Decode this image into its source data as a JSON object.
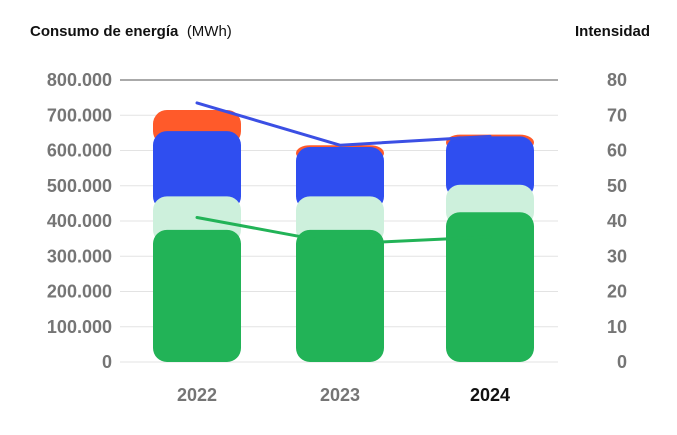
{
  "chart_data": {
    "type": "bar",
    "title": "Consumo de energía",
    "title_unit": "(MWh)",
    "right_axis_title": "Intensidad",
    "categories": [
      "2022",
      "2023",
      "2024"
    ],
    "highlighted_category": "2024",
    "stacked": true,
    "ylim": [
      0,
      800000
    ],
    "yticks": [
      {
        "value": 0,
        "label": "0"
      },
      {
        "value": 100000,
        "label": "100.000"
      },
      {
        "value": 200000,
        "label": "200.000"
      },
      {
        "value": 300000,
        "label": "300.000"
      },
      {
        "value": 400000,
        "label": "400.000"
      },
      {
        "value": 500000,
        "label": "500.000"
      },
      {
        "value": 600000,
        "label": "600.000"
      },
      {
        "value": 700000,
        "label": "700.000"
      },
      {
        "value": 800000,
        "label": "800.000"
      }
    ],
    "y2lim": [
      0,
      80
    ],
    "y2ticks": [
      "0",
      "10",
      "20",
      "30",
      "40",
      "50",
      "60",
      "70",
      "80"
    ],
    "series": [
      {
        "color": "#22b357",
        "values": [
          375000,
          375000,
          425000
        ]
      },
      {
        "color": "#cdf0dc",
        "values": [
          95000,
          95000,
          78000
        ]
      },
      {
        "color": "#2f4ef0",
        "values": [
          185000,
          140000,
          137000
        ]
      },
      {
        "color": "#ff5a2a",
        "values": [
          60000,
          5000,
          5000
        ]
      }
    ],
    "lines": [
      {
        "color": "#3b4fe4",
        "axis": "right",
        "values": [
          73.5,
          61.5,
          64
        ]
      },
      {
        "color": "#22b357",
        "axis": "right",
        "values": [
          41,
          33.5,
          35.5
        ]
      }
    ],
    "grid": true
  }
}
